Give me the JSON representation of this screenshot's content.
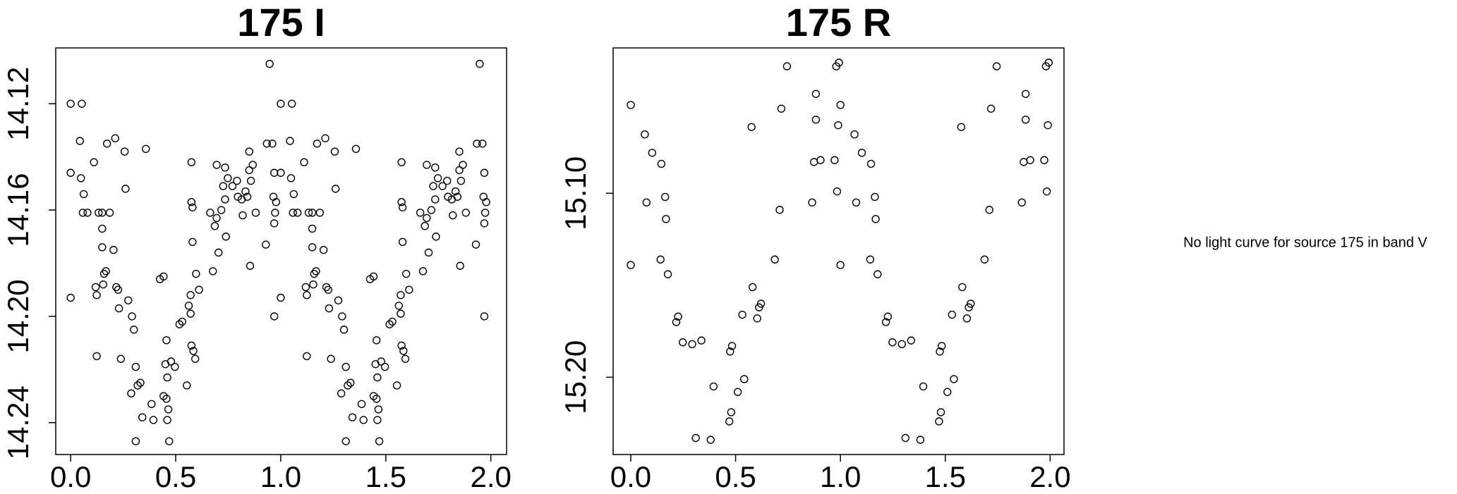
{
  "chart_data": [
    {
      "type": "scatter",
      "title": "175 I",
      "color": "#000000",
      "xlim": [
        -0.071,
        2.075
      ],
      "ylim": [
        14.252,
        14.099
      ],
      "xticks": [
        {
          "value": 0,
          "label": "0.0"
        },
        0.5,
        {
          "value": 1,
          "label": "1.0"
        },
        1.5,
        {
          "value": 2,
          "label": "2.0"
        }
      ],
      "yticks": [
        14.12,
        14.16,
        {
          "value": 14.2,
          "label": "14.20"
        },
        14.24
      ],
      "x": [
        0,
        0,
        0,
        0.053,
        0.044,
        0.049,
        0.062,
        0.058,
        0.08,
        0.111,
        0.119,
        0.124,
        0.133,
        0.124,
        0.15,
        0.15,
        0.15,
        0.159,
        0.155,
        0.173,
        0.168,
        0.186,
        0.204,
        0.212,
        0.217,
        0.226,
        0.23,
        0.239,
        0.257,
        0.261,
        0.274,
        0.292,
        0.301,
        0.31,
        0.31,
        0.288,
        0.319,
        0.332,
        0.341,
        0.358,
        0.385,
        0.394,
        0.425,
        0.442,
        0.442,
        0.451,
        0.456,
        0.465,
        0.456,
        0.46,
        0.46,
        0.469,
        0.478,
        0.496,
        0.518,
        0.531,
        0.553,
        0.562,
        0.571,
        0.571,
        0.575,
        0.575,
        0.58,
        0.58,
        0.575,
        0.584,
        0.593,
        0.597,
        0.611,
        0.664,
        0.677,
        0.686,
        0.695,
        0.695,
        0.704,
        0.717,
        0.726,
        0.735,
        0.735,
        0.739,
        0.748,
        0.77,
        0.792,
        0.796,
        0.814,
        0.819,
        0.832,
        0.841,
        0.85,
        0.854,
        0.85,
        0.858,
        0.867,
        0.881,
        0.929,
        0.934,
        0.947,
        0.96,
        0.965,
        0.969,
        0.973,
        0.969,
        0.969,
        0.978,
        1,
        1,
        1,
        1.053,
        1.044,
        1.049,
        1.062,
        1.058,
        1.08,
        1.111,
        1.119,
        1.124,
        1.133,
        1.124,
        1.15,
        1.15,
        1.15,
        1.159,
        1.155,
        1.173,
        1.168,
        1.186,
        1.204,
        1.212,
        1.217,
        1.226,
        1.23,
        1.239,
        1.257,
        1.261,
        1.274,
        1.292,
        1.301,
        1.31,
        1.31,
        1.288,
        1.319,
        1.332,
        1.341,
        1.358,
        1.385,
        1.394,
        1.425,
        1.442,
        1.442,
        1.451,
        1.456,
        1.465,
        1.456,
        1.46,
        1.46,
        1.469,
        1.478,
        1.496,
        1.518,
        1.531,
        1.553,
        1.562,
        1.571,
        1.571,
        1.575,
        1.575,
        1.58,
        1.58,
        1.575,
        1.584,
        1.593,
        1.597,
        1.611,
        1.664,
        1.677,
        1.686,
        1.695,
        1.695,
        1.704,
        1.717,
        1.726,
        1.735,
        1.735,
        1.739,
        1.748,
        1.77,
        1.792,
        1.796,
        1.814,
        1.819,
        1.832,
        1.841,
        1.85,
        1.854,
        1.85,
        1.858,
        1.867,
        1.881,
        1.929,
        1.934,
        1.947,
        1.96,
        1.965,
        1.969,
        1.973,
        1.969,
        1.969,
        1.978
      ],
      "y": [
        14.12,
        14.146,
        14.193,
        14.12,
        14.134,
        14.148,
        14.154,
        14.161,
        14.161,
        14.142,
        14.189,
        14.192,
        14.161,
        14.215,
        14.161,
        14.167,
        14.174,
        14.184,
        14.188,
        14.135,
        14.183,
        14.161,
        14.175,
        14.133,
        14.189,
        14.19,
        14.197,
        14.216,
        14.138,
        14.152,
        14.194,
        14.2,
        14.205,
        14.219,
        14.247,
        14.229,
        14.226,
        14.225,
        14.238,
        14.137,
        14.233,
        14.239,
        14.186,
        14.185,
        14.23,
        14.218,
        14.231,
        14.235,
        14.209,
        14.223,
        14.239,
        14.247,
        14.217,
        14.219,
        14.203,
        14.202,
        14.226,
        14.196,
        14.192,
        14.199,
        14.211,
        14.157,
        14.159,
        14.172,
        14.142,
        14.213,
        14.216,
        14.184,
        14.19,
        14.161,
        14.183,
        14.166,
        14.163,
        14.143,
        14.176,
        14.16,
        14.151,
        14.144,
        14.156,
        14.17,
        14.148,
        14.151,
        14.149,
        14.155,
        14.156,
        14.162,
        14.153,
        14.155,
        14.138,
        14.181,
        14.145,
        14.149,
        14.143,
        14.161,
        14.173,
        14.135,
        14.105,
        14.135,
        14.155,
        14.146,
        14.161,
        14.165,
        14.2,
        14.157,
        14.12,
        14.146,
        14.193,
        14.12,
        14.134,
        14.148,
        14.154,
        14.161,
        14.161,
        14.142,
        14.189,
        14.192,
        14.161,
        14.215,
        14.161,
        14.167,
        14.174,
        14.184,
        14.188,
        14.135,
        14.183,
        14.161,
        14.175,
        14.133,
        14.189,
        14.19,
        14.197,
        14.216,
        14.138,
        14.152,
        14.194,
        14.2,
        14.205,
        14.219,
        14.247,
        14.229,
        14.226,
        14.225,
        14.238,
        14.137,
        14.233,
        14.239,
        14.186,
        14.185,
        14.23,
        14.218,
        14.231,
        14.235,
        14.209,
        14.223,
        14.239,
        14.247,
        14.217,
        14.219,
        14.203,
        14.202,
        14.226,
        14.196,
        14.192,
        14.199,
        14.211,
        14.157,
        14.159,
        14.172,
        14.142,
        14.213,
        14.216,
        14.184,
        14.19,
        14.161,
        14.183,
        14.166,
        14.163,
        14.143,
        14.176,
        14.16,
        14.151,
        14.144,
        14.156,
        14.17,
        14.148,
        14.151,
        14.149,
        14.155,
        14.156,
        14.162,
        14.153,
        14.155,
        14.138,
        14.181,
        14.145,
        14.149,
        14.143,
        14.161,
        14.173,
        14.135,
        14.105,
        14.135,
        14.155,
        14.146,
        14.161,
        14.165,
        14.2,
        14.157
      ]
    },
    {
      "type": "scatter",
      "title": "175 R",
      "color": "#000000",
      "xlim": [
        -0.084,
        2.066
      ],
      "ylim": [
        15.242,
        15.021
      ],
      "xticks": [
        {
          "value": 0,
          "label": "0.0"
        },
        0.5,
        {
          "value": 1,
          "label": "1.0"
        },
        1.5,
        {
          "value": 2,
          "label": "2.0"
        }
      ],
      "yticks": [
        {
          "value": 15.1,
          "label": "15.10"
        },
        {
          "value": 15.2,
          "label": "15.20"
        }
      ],
      "x": [
        0,
        0,
        0.067,
        0.075,
        0.102,
        0.142,
        0.146,
        0.164,
        0.168,
        0.177,
        0.217,
        0.226,
        0.248,
        0.293,
        0.31,
        0.337,
        0.381,
        0.395,
        0.47,
        0.479,
        0.474,
        0.483,
        0.51,
        0.541,
        0.532,
        0.581,
        0.603,
        0.612,
        0.621,
        0.576,
        0.687,
        0.71,
        0.718,
        0.745,
        0.865,
        0.874,
        0.883,
        0.883,
        0.905,
        0.972,
        0.98,
        0.993,
        0.989,
        0.984,
        1,
        1,
        1.067,
        1.075,
        1.102,
        1.142,
        1.146,
        1.164,
        1.168,
        1.177,
        1.217,
        1.226,
        1.248,
        1.293,
        1.31,
        1.337,
        1.381,
        1.395,
        1.47,
        1.479,
        1.474,
        1.483,
        1.51,
        1.541,
        1.532,
        1.581,
        1.603,
        1.612,
        1.621,
        1.576,
        1.687,
        1.71,
        1.718,
        1.745,
        1.865,
        1.874,
        1.883,
        1.883,
        1.905,
        1.972,
        1.98,
        1.993,
        1.989,
        1.984
      ],
      "y": [
        15.052,
        15.139,
        15.068,
        15.105,
        15.078,
        15.136,
        15.084,
        15.102,
        15.114,
        15.144,
        15.17,
        15.167,
        15.181,
        15.182,
        15.233,
        15.18,
        15.234,
        15.205,
        15.224,
        15.219,
        15.186,
        15.183,
        15.208,
        15.201,
        15.166,
        15.151,
        15.168,
        15.162,
        15.16,
        15.064,
        15.136,
        15.109,
        15.054,
        15.031,
        15.105,
        15.083,
        15.046,
        15.06,
        15.082,
        15.082,
        15.031,
        15.029,
        15.063,
        15.099,
        15.052,
        15.139,
        15.068,
        15.105,
        15.078,
        15.136,
        15.084,
        15.102,
        15.114,
        15.144,
        15.17,
        15.167,
        15.181,
        15.182,
        15.233,
        15.18,
        15.234,
        15.205,
        15.224,
        15.219,
        15.186,
        15.183,
        15.208,
        15.201,
        15.166,
        15.151,
        15.168,
        15.162,
        15.16,
        15.064,
        15.136,
        15.109,
        15.054,
        15.031,
        15.105,
        15.083,
        15.046,
        15.06,
        15.082,
        15.082,
        15.031,
        15.029,
        15.063,
        15.099
      ]
    }
  ],
  "message": "No light curve for source 175 in band V"
}
